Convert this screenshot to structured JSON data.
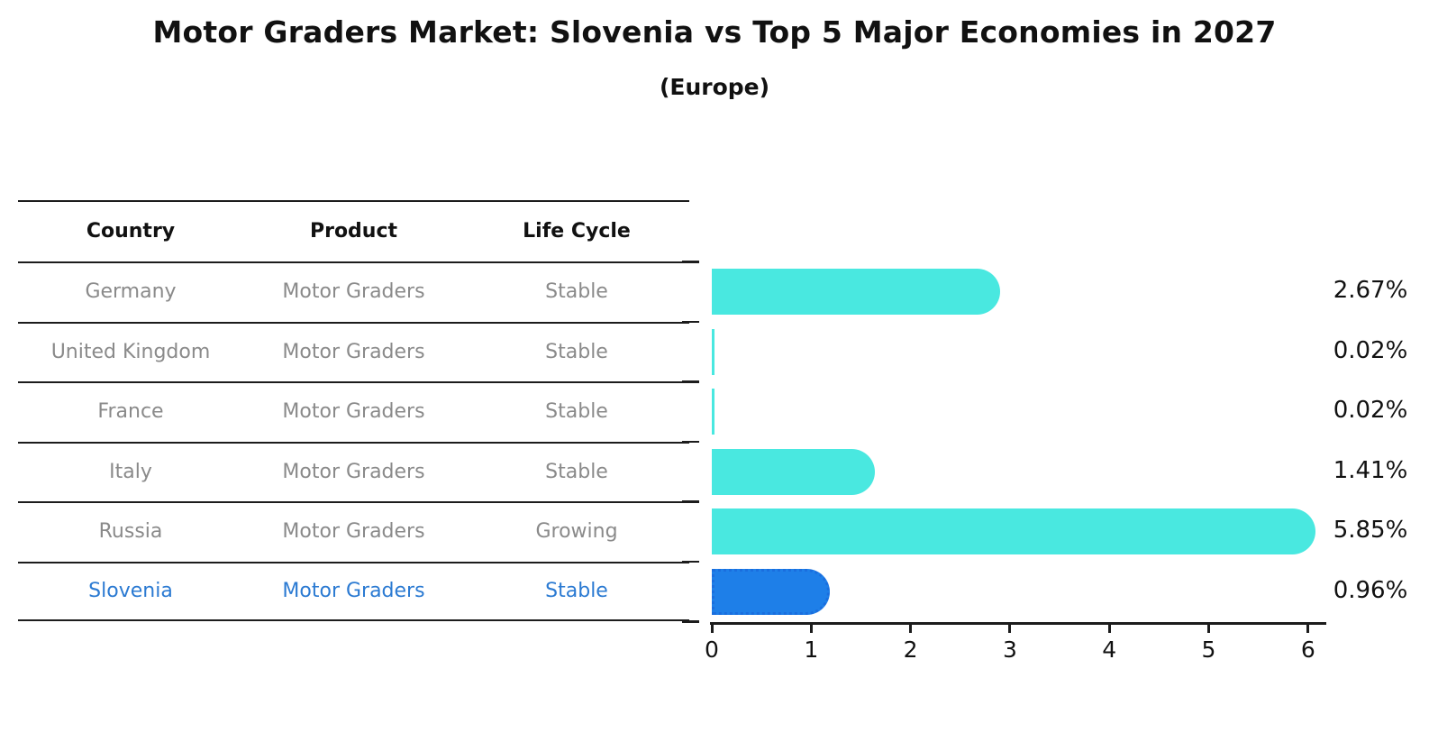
{
  "chart_data": {
    "type": "bar",
    "orientation": "horizontal",
    "title": "Motor Graders Market: Slovenia vs Top 5 Major Economies in 2027",
    "subtitle": "(Europe)",
    "table_headers": [
      "Country",
      "Product",
      "Life Cycle"
    ],
    "x_ticks": [
      0,
      1,
      2,
      3,
      4,
      5,
      6
    ],
    "xlim": [
      0,
      6
    ],
    "grid": false,
    "rows": [
      {
        "country": "Germany",
        "product": "Motor Graders",
        "life_cycle": "Stable",
        "value": 2.67,
        "value_label": "2.67%",
        "highlight": false
      },
      {
        "country": "United Kingdom",
        "product": "Motor Graders",
        "life_cycle": "Stable",
        "value": 0.02,
        "value_label": "0.02%",
        "highlight": false
      },
      {
        "country": "France",
        "product": "Motor Graders",
        "life_cycle": "Stable",
        "value": 0.02,
        "value_label": "0.02%",
        "highlight": false
      },
      {
        "country": "Italy",
        "product": "Motor Graders",
        "life_cycle": "Stable",
        "value": 1.41,
        "value_label": "1.41%",
        "highlight": false
      },
      {
        "country": "Russia",
        "product": "Motor Graders",
        "life_cycle": "Growing",
        "value": 5.85,
        "value_label": "5.85%",
        "highlight": false
      },
      {
        "country": "Slovenia",
        "product": "Motor Graders",
        "life_cycle": "Stable",
        "value": 0.96,
        "value_label": "0.96%",
        "highlight": true
      }
    ],
    "colors": {
      "bar": "#49E8E0",
      "highlight_bar": "#1E7FE8",
      "highlight_border": "#1A6EDE",
      "highlight_text": "#2B7AD2",
      "table_text": "#8A8A8A",
      "header_text": "#111111",
      "axis": "#1C1C1C"
    }
  }
}
